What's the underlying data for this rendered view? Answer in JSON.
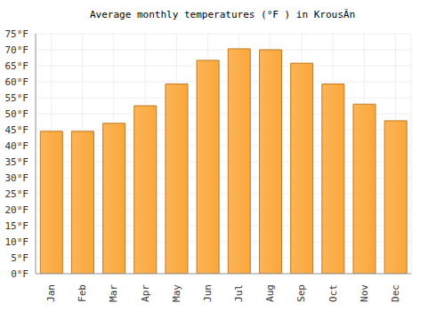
{
  "chart_data": {
    "type": "bar",
    "title": "Average monthly temperatures (°F ) in KrousÃn",
    "categories": [
      "Jan",
      "Feb",
      "Mar",
      "Apr",
      "May",
      "Jun",
      "Jul",
      "Aug",
      "Sep",
      "Oct",
      "Nov",
      "Dec"
    ],
    "values": [
      44.5,
      44.5,
      47,
      52.5,
      59.3,
      66.7,
      70.3,
      70,
      65.8,
      59.3,
      53,
      47.8
    ],
    "color": "#fba73a",
    "ylim": [
      0,
      75
    ],
    "yticks": [
      {
        "value": 0,
        "label": "0°F"
      },
      {
        "value": 5,
        "label": "5°F"
      },
      {
        "value": 10,
        "label": "10°F"
      },
      {
        "value": 15,
        "label": "15°F"
      },
      {
        "value": 20,
        "label": "20°F"
      },
      {
        "value": 25,
        "label": "25°F"
      },
      {
        "value": 30,
        "label": "30°F"
      },
      {
        "value": 35,
        "label": "35°F"
      },
      {
        "value": 40,
        "label": "40°F"
      },
      {
        "value": 45,
        "label": "45°F"
      },
      {
        "value": 50,
        "label": "50°F"
      },
      {
        "value": 55,
        "label": "55°F"
      },
      {
        "value": 60,
        "label": "60°F"
      },
      {
        "value": 65,
        "label": "65°F"
      },
      {
        "value": 70,
        "label": "70°F"
      },
      {
        "value": 75,
        "label": "75°F"
      }
    ],
    "grid": true
  }
}
